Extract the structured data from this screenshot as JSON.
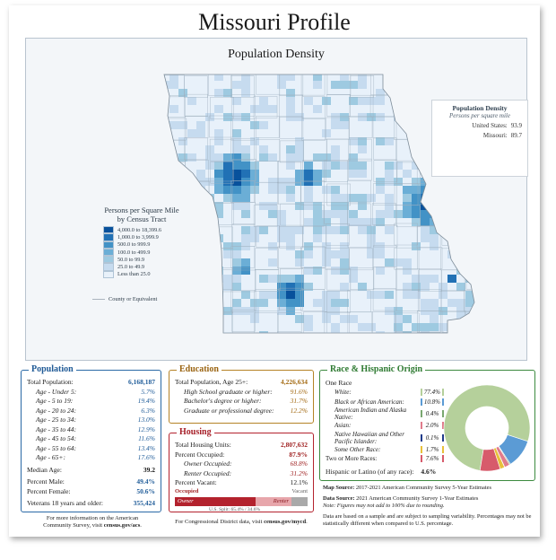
{
  "page": {
    "title": "Missouri Profile"
  },
  "map": {
    "title": "Population Density",
    "infobox": {
      "heading": "Population Density",
      "subheading": "Persons per square mile",
      "us_label": "United States:",
      "us_value": "93.9",
      "mo_label": "Missouri:",
      "mo_value": "89.7"
    },
    "legend": {
      "heading_line1": "Persons per Square Mile",
      "heading_line2": "by Census Tract",
      "classes": [
        {
          "label": "4,000.0 to 18,399.6",
          "color": "#08519c"
        },
        {
          "label": "1,000.0 to 3,999.9",
          "color": "#2171b5"
        },
        {
          "label": "500.0 to 999.9",
          "color": "#4292c6"
        },
        {
          "label": "100.0 to 499.9",
          "color": "#6baed6"
        },
        {
          "label": "50.0 to 99.9",
          "color": "#9ecae1"
        },
        {
          "label": "25.0 to 49.9",
          "color": "#c6dbef"
        },
        {
          "label": "Less than 25.0",
          "color": "#e8f1fa"
        }
      ],
      "county_label": "County or Equivalent"
    }
  },
  "population": {
    "title": "Population",
    "total_label": "Total Population:",
    "total_value": "6,168,187",
    "ages": [
      {
        "label": "Age - Under 5:",
        "value": "5.7%"
      },
      {
        "label": "Age - 5 to 19:",
        "value": "19.4%"
      },
      {
        "label": "Age - 20 to 24:",
        "value": "6.3%"
      },
      {
        "label": "Age - 25 to 34:",
        "value": "13.0%"
      },
      {
        "label": "Age - 35 to 44:",
        "value": "12.9%"
      },
      {
        "label": "Age - 45 to 54:",
        "value": "11.6%"
      },
      {
        "label": "Age - 55 to 64:",
        "value": "13.4%"
      },
      {
        "label": "Age - 65+:",
        "value": "17.6%"
      }
    ],
    "median_label": "Median Age:",
    "median_value": "39.2",
    "male_label": "Percent Male:",
    "male_value": "49.4%",
    "female_label": "Percent Female:",
    "female_value": "50.6%",
    "veterans_label": "Veterans 18 years and older:",
    "veterans_value": "355,424"
  },
  "education": {
    "title": "Education",
    "total_label": "Total Population, Age 25+:",
    "total_value": "4,226,634",
    "items": [
      {
        "label": "High School graduate or higher:",
        "value": "91.6%"
      },
      {
        "label": "Bachelor's degree or higher:",
        "value": "31.7%"
      },
      {
        "label": "Graduate or professional degree:",
        "value": "12.2%"
      }
    ]
  },
  "housing": {
    "title": "Housing",
    "units_label": "Total Housing Units:",
    "units_value": "2,807,632",
    "occupied_label": "Percent Occupied:",
    "occupied_value": "87.9%",
    "owner_label": "Owner Occupied:",
    "owner_value": "68.8%",
    "renter_label": "Renter Occupied:",
    "renter_value": "31.2%",
    "vacant_label": "Percent Vacant:",
    "vacant_value": "12.1%",
    "bar": {
      "occupied_tag": "Occupied",
      "vacant_tag": "Vacant",
      "owner_tag": "Owner",
      "renter_tag": "Renter",
      "owner_share": 0.605,
      "renter_share": 0.274,
      "vacant_share": 0.121,
      "us_split": "U.S. Split: 65.4% / 34.6%"
    }
  },
  "race": {
    "title": "Race & Hispanic Origin",
    "one_race_label": "One Race",
    "items": [
      {
        "label": "White:",
        "value": "77.4%",
        "color": "#b5d09b"
      },
      {
        "label": "Black or African American:",
        "value": "10.8%",
        "color": "#5b9bd5"
      },
      {
        "label": "American Indian and Alaska Native:",
        "value": "0.4%",
        "color": "#7aa870"
      },
      {
        "label": "Asian:",
        "value": "2.0%",
        "color": "#e07b8b"
      },
      {
        "label": "Native Hawaiian and Other Pacific Islander:",
        "value": "0.1%",
        "color": "#1f3b8a"
      },
      {
        "label": "Some Other Race:",
        "value": "1.7%",
        "color": "#e8c03a"
      },
      {
        "label": "Two or More Races:",
        "value": "7.6%",
        "color": "#d75b6b"
      }
    ],
    "hispanic_label": "Hispanic or Latino (of any race):",
    "hispanic_value": "4.6%"
  },
  "notes": {
    "map_source_label": "Map Source:",
    "map_source": "2017-2021 American Community Survey 5-Year Estimates",
    "data_source_label": "Data Source:",
    "data_source": "2021 American Community Survey 1-Year Estimates",
    "rounding": "Note: Figures may not add to 100% due to rounding.",
    "sample": "Data are based on a sample and are subject to sampling variability. Percentages may not be statistically different when compared to U.S. percentage."
  },
  "footer": {
    "left_line1": "For more information on the American",
    "left_line2_prefix": "Community Survey, visit",
    "left_link": "census.gov/acs",
    "middle_prefix": "For Congressional District data, visit",
    "middle_link": "census.gov/mycd"
  }
}
